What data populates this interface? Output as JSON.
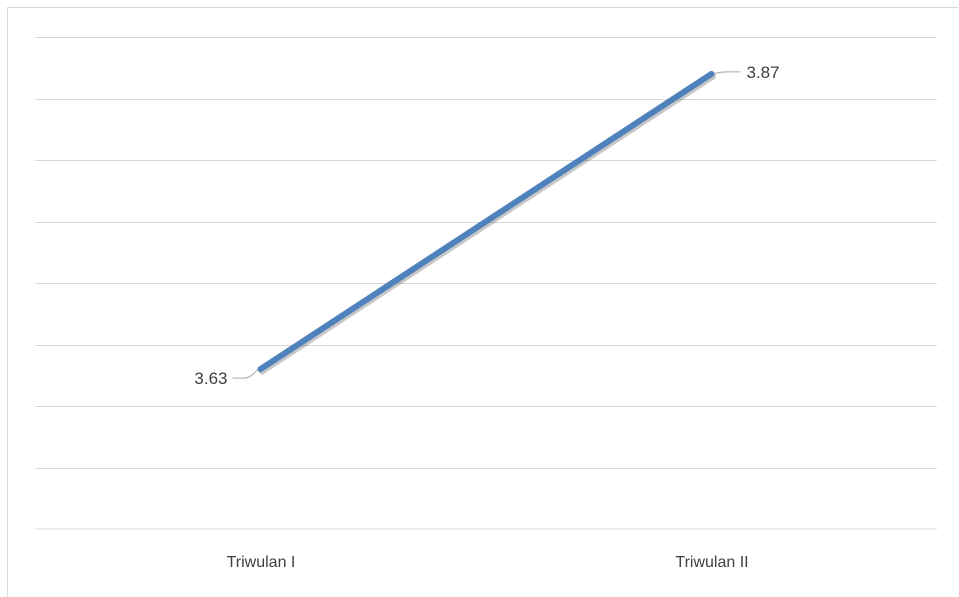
{
  "chart_data": {
    "type": "line",
    "categories": [
      "Triwulan I",
      "Triwulan II"
    ],
    "series": [
      {
        "values": [
          3.63,
          3.87
        ],
        "color": "#4f81bd"
      }
    ],
    "data_labels": [
      "3.63",
      "3.87"
    ],
    "ylim": [
      3.5,
      3.9
    ],
    "y_axis_labels_shown": false,
    "grid": true,
    "legend": "none",
    "title": "",
    "xlabel": "",
    "ylabel": ""
  }
}
